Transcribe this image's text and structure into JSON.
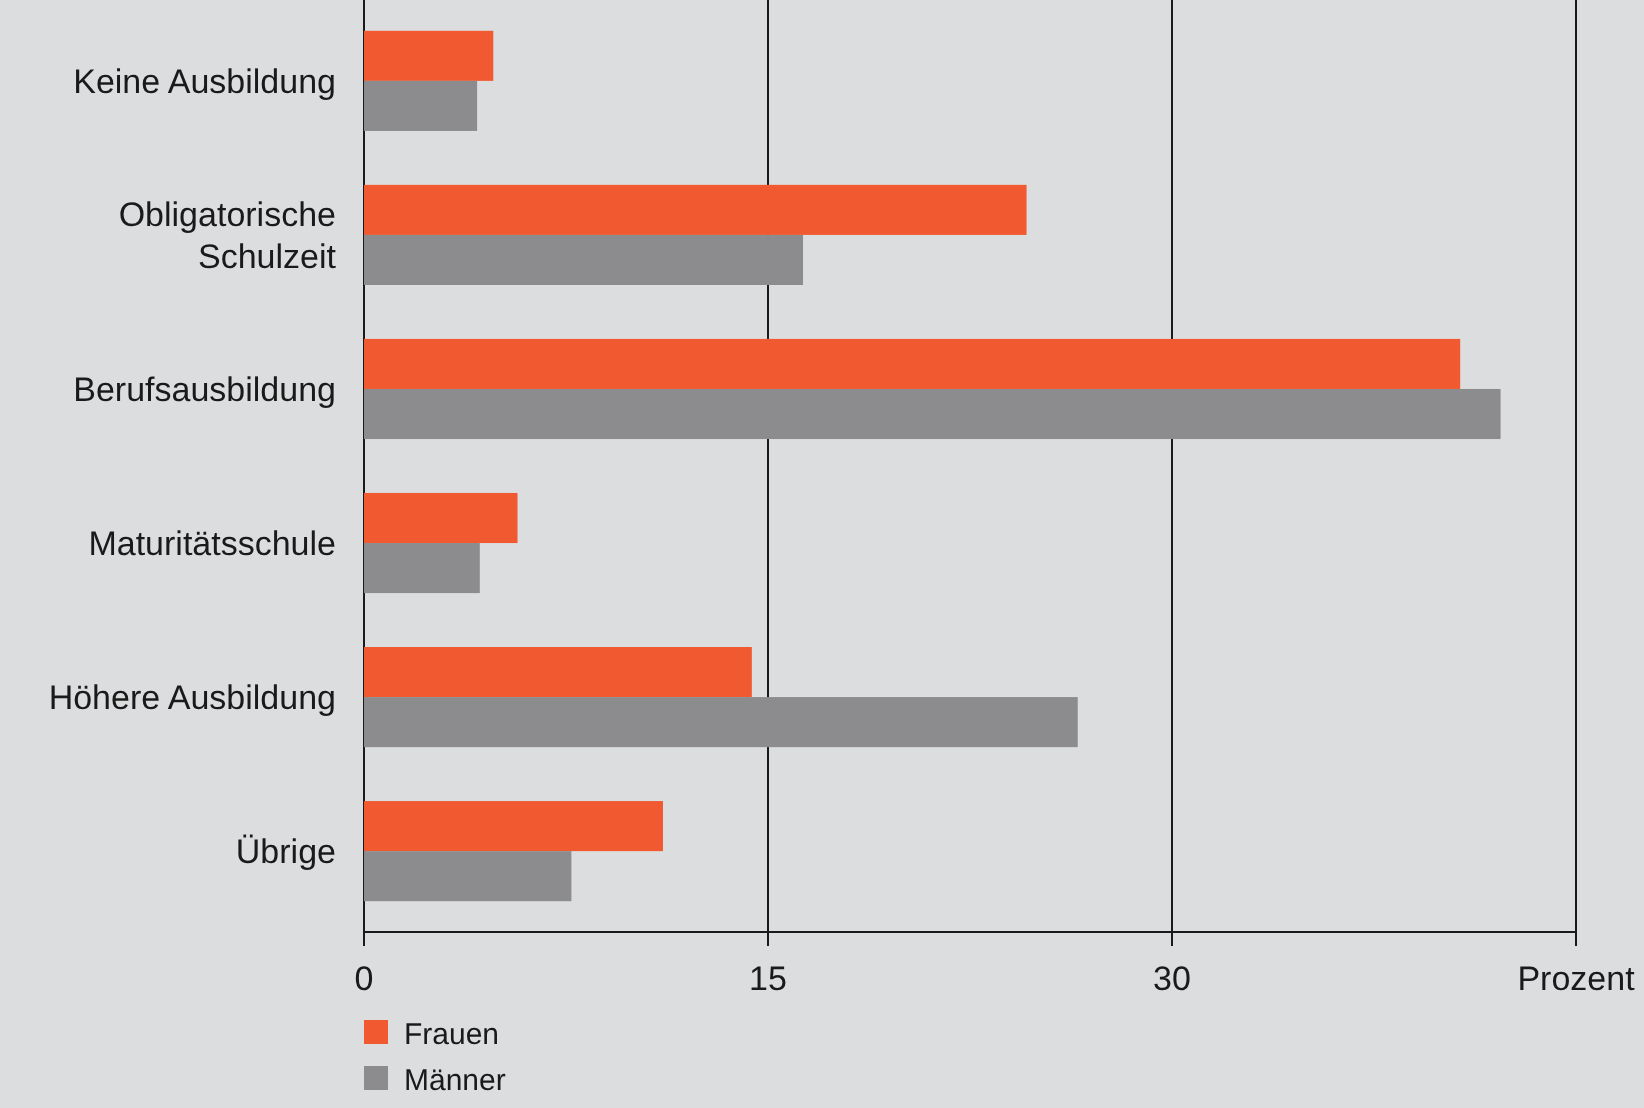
{
  "chart_data": {
    "type": "bar",
    "orientation": "horizontal",
    "categories": [
      "Keine Ausbildung",
      "Obligatorische\nSchulzeit",
      "Berufsausbildung",
      "Maturitätsschule",
      "Höhere Ausbildung",
      "Übrige"
    ],
    "series": [
      {
        "name": "Frauen",
        "color": "#f15a30",
        "values": [
          4.8,
          24.6,
          40.7,
          5.7,
          14.4,
          11.1
        ]
      },
      {
        "name": "Männer",
        "color": "#8c8c8e",
        "values": [
          4.2,
          16.3,
          42.2,
          4.3,
          26.5,
          7.7
        ]
      }
    ],
    "xlim": [
      0,
      45
    ],
    "xticks": [
      0,
      15,
      30,
      {
        "value": 45,
        "label": "Prozent"
      }
    ],
    "grid": "x",
    "legend": "bottom left"
  }
}
